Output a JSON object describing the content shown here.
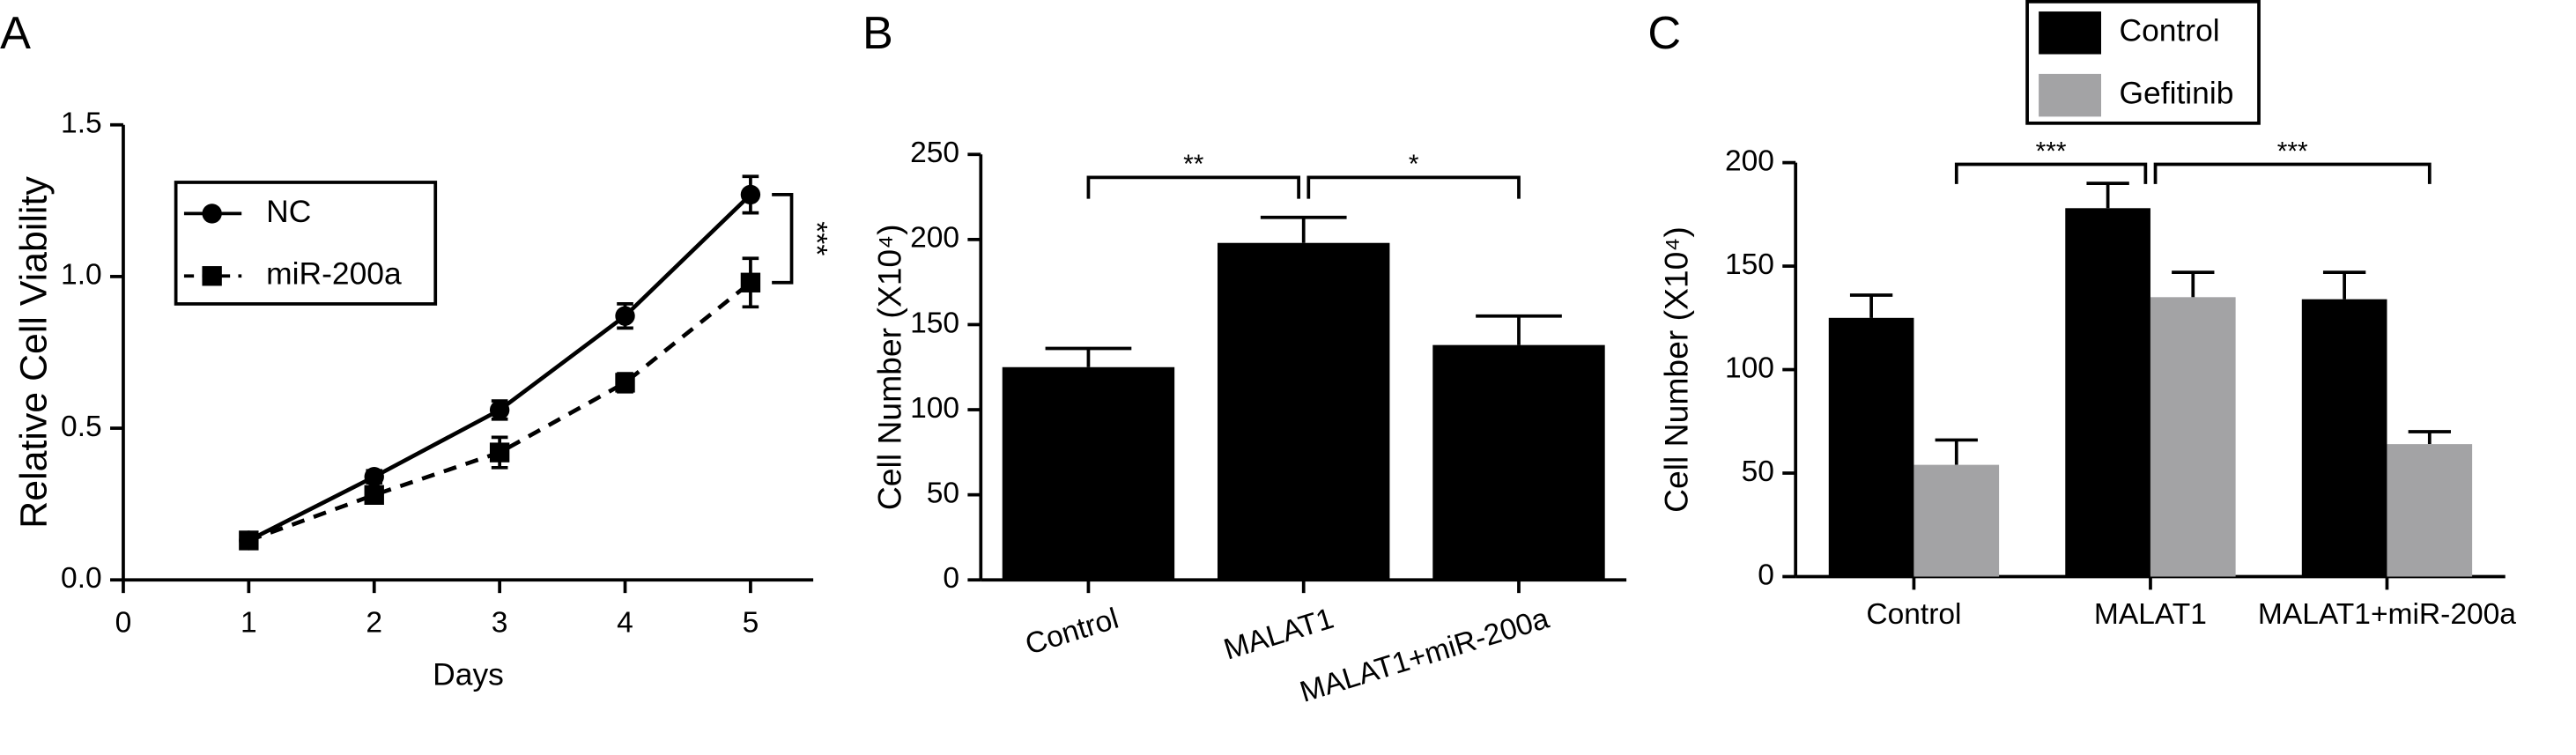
{
  "chart_data": [
    {
      "type": "line",
      "panel_label": "A",
      "xlabel": "Days",
      "ylabel": "Relative Cell Viability",
      "xlim": [
        0,
        5.5
      ],
      "xticks": [
        0,
        1,
        2,
        3,
        4,
        5
      ],
      "ylim": [
        0,
        1.5
      ],
      "yticks": [
        {
          "value": 0,
          "label": "0.0"
        },
        {
          "value": 0.5,
          "label": "0.5"
        },
        {
          "value": 1,
          "label": "1.0"
        },
        {
          "value": 1.5,
          "label": "1.5"
        }
      ],
      "x": [
        1,
        2,
        3,
        4,
        5
      ],
      "series": [
        {
          "name": "NC",
          "color": "#000000",
          "marker": "circle",
          "linestyle": "solid",
          "values": [
            0.13,
            0.34,
            0.56,
            0.87,
            1.27
          ],
          "errors": [
            0.02,
            0.02,
            0.03,
            0.04,
            0.06
          ]
        },
        {
          "name": "miR-200a",
          "color": "#000000",
          "marker": "square",
          "linestyle": "dashed",
          "values": [
            0.13,
            0.28,
            0.42,
            0.65,
            0.98
          ],
          "errors": [
            0.02,
            0.02,
            0.05,
            0.03,
            0.08
          ]
        }
      ],
      "legend": "upper left",
      "annotations": [
        {
          "text": "***"
        }
      ]
    },
    {
      "type": "bar",
      "panel_label": "B",
      "ylabel": "Cell Number (X10⁴)",
      "categories": [
        "Control",
        "MALAT1",
        "MALAT1+miR-200a"
      ],
      "values": [
        125,
        198,
        138
      ],
      "errors": [
        11,
        15,
        17
      ],
      "color": "#000000",
      "ylim": [
        0,
        250
      ],
      "yticks": [
        0,
        50,
        100,
        150,
        200,
        250
      ],
      "annotations": [
        {
          "text": "**"
        },
        {
          "text": "*"
        }
      ]
    },
    {
      "type": "bar",
      "panel_label": "C",
      "ylabel": "Cell Number (X10⁴)",
      "categories": [
        "Control",
        "MALAT1",
        "MALAT1+miR-200a"
      ],
      "series": [
        {
          "name": "Control",
          "color": "#000000",
          "values": [
            125,
            178,
            134
          ],
          "errors": [
            11,
            12,
            13
          ]
        },
        {
          "name": "Gefitinib",
          "color": "#a3a3a5",
          "values": [
            54,
            135,
            64
          ],
          "errors": [
            12,
            12,
            6
          ]
        }
      ],
      "ylim": [
        0,
        200
      ],
      "yticks": [
        0,
        50,
        100,
        150,
        200
      ],
      "legend": "top",
      "annotations": [
        {
          "text": "***"
        },
        {
          "text": "***"
        }
      ]
    }
  ]
}
